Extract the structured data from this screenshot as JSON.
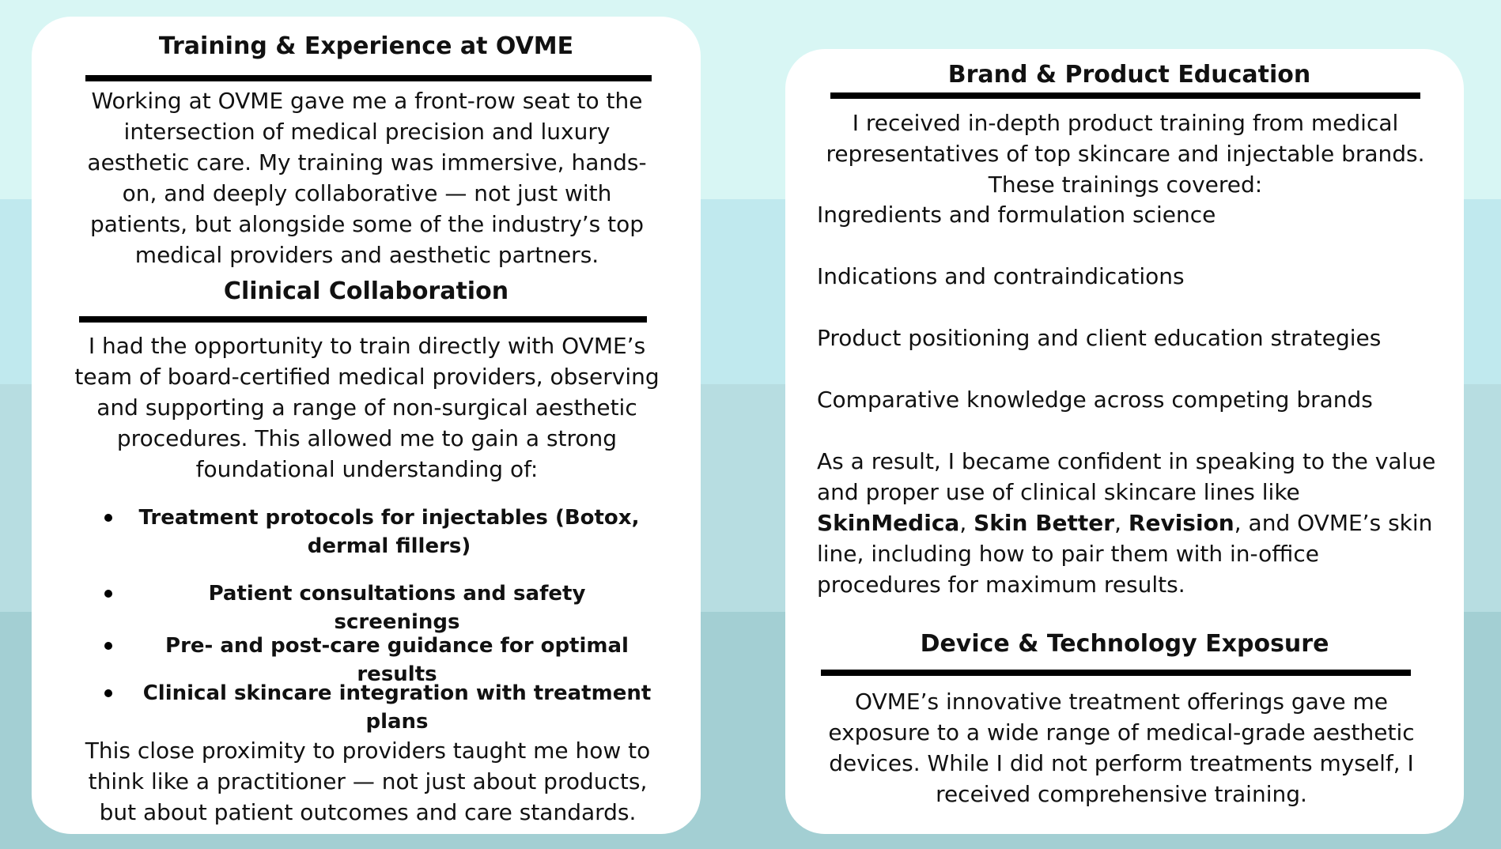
{
  "left_card": {
    "section1": {
      "title": "Training & Experience at OVME",
      "body": "Working at OVME gave me a front-row seat to the intersection of medical precision and luxury aesthetic care. My training was immersive, hands-on, and deeply collaborative — not just with patients, but alongside some of the industry’s top medical providers and aesthetic partners."
    },
    "section2": {
      "title": "Clinical Collaboration",
      "intro": "I had the opportunity to train directly with OVME’s team of board-certified medical providers, observing and supporting a range of non-surgical aesthetic procedures. This allowed me to gain a strong foundational understanding of:",
      "bullets": [
        "Treatment protocols for injectables (Botox, dermal fillers)",
        "Patient consultations and safety screenings",
        "Pre- and post-care guidance for optimal results",
        "Clinical skincare integration with treatment plans"
      ],
      "closing": "This close proximity to providers taught me how to think like a practitioner — not just about products, but about patient outcomes and care standards."
    }
  },
  "right_card": {
    "section1": {
      "title": "Brand & Product Education",
      "intro": "I received in-depth product training from medical representatives of top skincare and injectable brands. These trainings covered:",
      "items": [
        "Ingredients and formulation science",
        "Indications and contraindications",
        "Product positioning and client education strategies",
        "Comparative knowledge across competing brands"
      ],
      "result_parts": {
        "p1": "As a result, I became confident in speaking to the value and proper use of clinical skincare lines like ",
        "brand1": "SkinMedica",
        "sep1": ", ",
        "brand2": "Skin Better",
        "sep2": ", ",
        "brand3": "Revision",
        "p2": ", and OVME’s skin line, including how to pair them with in-office procedures for maximum results."
      }
    },
    "section2": {
      "title": "Device & Technology Exposure",
      "body": "OVME’s innovative treatment offerings gave me exposure to a wide range of medical-grade aesthetic devices. While I did not perform treatments myself, I received comprehensive training."
    }
  }
}
